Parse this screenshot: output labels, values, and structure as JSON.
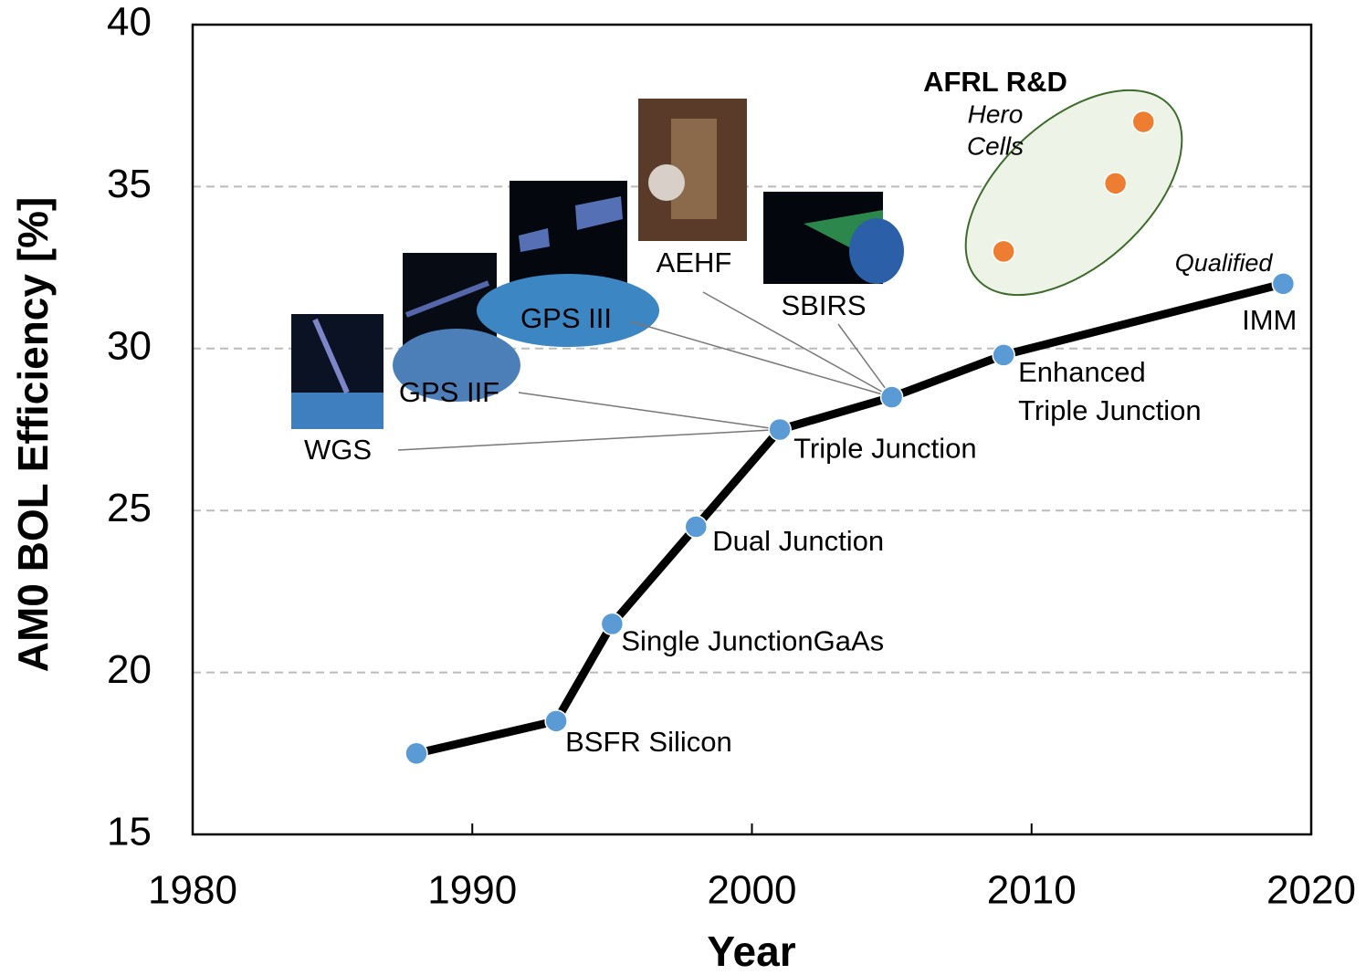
{
  "chart_data": {
    "type": "line",
    "x_label": "Year",
    "y_label": "AM0 BOL Efficiency [%]",
    "xlim": [
      1980,
      2020
    ],
    "xticks": [
      1980,
      1990,
      2000,
      2010,
      2020
    ],
    "ylim": [
      15,
      40
    ],
    "yticks": [
      15,
      20,
      25,
      30,
      35,
      40
    ],
    "grid": true,
    "series": [
      {
        "color": "#5b9bd5",
        "line_color": "#000000",
        "x": [
          1988,
          1993,
          1995,
          1998,
          2001,
          2005,
          2009,
          2019
        ],
        "values": [
          17.5,
          18.5,
          21.5,
          24.5,
          27.5,
          28.5,
          29.8,
          32.0
        ],
        "point_labels": [
          null,
          [
            "BSFR Silicon"
          ],
          [
            "Single JunctionGaAs"
          ],
          [
            "Dual Junction"
          ],
          [
            "Triple Junction"
          ],
          null,
          [
            "Enhanced",
            "Triple Junction"
          ],
          [
            "IMM"
          ]
        ],
        "note": "Qualified"
      },
      {
        "color": "#ed7d31",
        "line_color": null,
        "x": [
          2009,
          2013,
          2014
        ],
        "values": [
          33.0,
          35.1,
          37.0
        ]
      }
    ],
    "hero_annotation": {
      "title": "AFRL R&D",
      "lines": [
        "Hero",
        "Cells"
      ]
    },
    "satellites": [
      "WGS",
      "GPS IIF",
      "GPS III",
      "AEHF",
      "SBIRS"
    ]
  }
}
